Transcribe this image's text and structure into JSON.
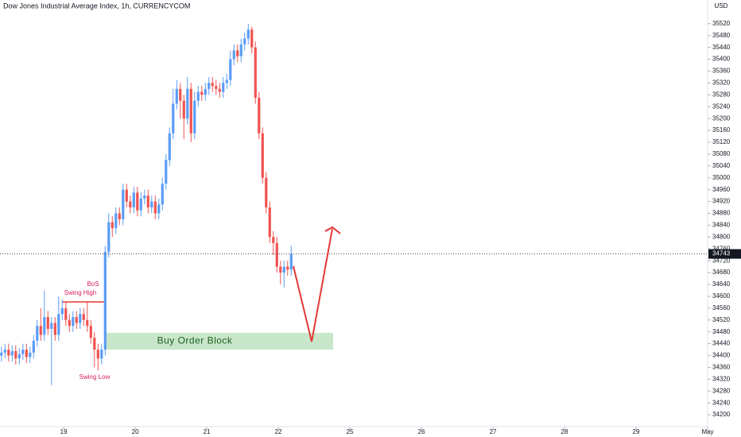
{
  "chart_data": {
    "type": "candlestick",
    "title": "Dow Jones Industrial Average Index, 1h, CURRENCYCOM",
    "currency": "USD",
    "x": [
      -0.87,
      -0.82,
      -0.77,
      -0.72,
      -0.67,
      -0.62,
      -0.57,
      -0.52,
      -0.47,
      -0.42,
      -0.37,
      -0.32,
      -0.27,
      -0.22,
      -0.17,
      -0.12,
      -0.07,
      -0.02,
      0.03,
      0.08,
      0.13,
      0.18,
      0.23,
      0.28,
      0.33,
      0.38,
      0.43,
      0.48,
      0.53,
      0.58,
      0.63,
      0.68,
      0.73,
      0.78,
      0.83,
      0.88,
      0.93,
      0.98,
      1.03,
      1.08,
      1.13,
      1.18,
      1.23,
      1.28,
      1.33,
      1.38,
      1.43,
      1.48,
      1.53,
      1.58,
      1.63,
      1.68,
      1.73,
      1.78,
      1.83,
      1.88,
      1.93,
      1.98,
      2.03,
      2.08,
      2.13,
      2.18,
      2.23,
      2.28,
      2.33,
      2.38,
      2.43,
      2.48,
      2.53,
      2.58,
      2.63,
      2.68,
      2.73,
      2.78,
      2.83,
      2.88,
      2.93,
      2.98,
      3.03,
      3.08,
      3.13,
      3.18
    ],
    "series": [
      {
        "up_color": "#5b9cf6",
        "down_color": "#ef5350",
        "open": [
          34400,
          34410,
          34420,
          34400,
          34415,
          34390,
          34405,
          34420,
          34395,
          34410,
          34450,
          34500,
          34470,
          34530,
          34490,
          34510,
          34470,
          34540,
          34560,
          34520,
          34500,
          34530,
          34510,
          34540,
          34520,
          34500,
          34460,
          34420,
          34390,
          34420,
          34750,
          34850,
          34830,
          34880,
          34860,
          34960,
          34920,
          34900,
          34950,
          34890,
          34930,
          34940,
          34900,
          34920,
          34880,
          34910,
          34980,
          35060,
          35150,
          35250,
          35300,
          35260,
          35200,
          35300,
          35150,
          35260,
          35290,
          35280,
          35300,
          35320,
          35310,
          35300,
          35290,
          35320,
          35330,
          35400,
          35430,
          35410,
          35450,
          35470,
          35500,
          35440,
          35270,
          35150,
          35000,
          34900,
          34800,
          34780,
          34700,
          34680,
          34700,
          34690
        ],
        "high": [
          34430,
          34440,
          34440,
          34435,
          34435,
          34425,
          34440,
          34440,
          34430,
          34470,
          34520,
          34560,
          34620,
          34550,
          34530,
          34530,
          34600,
          34590,
          34580,
          34540,
          34550,
          34550,
          34560,
          34560,
          34580,
          34520,
          34480,
          34440,
          34440,
          34770,
          34880,
          34870,
          34900,
          34900,
          34980,
          34980,
          34940,
          34970,
          34970,
          34950,
          34960,
          34960,
          34940,
          34940,
          34930,
          35000,
          35080,
          35170,
          35300,
          35330,
          35320,
          35280,
          35340,
          35320,
          35290,
          35310,
          35310,
          35320,
          35340,
          35340,
          35330,
          35320,
          35340,
          35350,
          35430,
          35450,
          35450,
          35470,
          35490,
          35520,
          35510,
          35460,
          35290,
          35170,
          35020,
          34920,
          34820,
          34800,
          34720,
          34720,
          34720,
          34770
        ],
        "low": [
          34380,
          34390,
          34380,
          34380,
          34370,
          34370,
          34385,
          34375,
          34375,
          34390,
          34430,
          34450,
          34450,
          34470,
          34300,
          34450,
          34450,
          34520,
          34500,
          34480,
          34480,
          34490,
          34490,
          34500,
          34480,
          34440,
          34360,
          34350,
          34370,
          34400,
          34730,
          34800,
          34810,
          34840,
          34840,
          34900,
          34880,
          34880,
          34870,
          34870,
          34910,
          34880,
          34880,
          34860,
          34860,
          34890,
          34960,
          35040,
          35130,
          35230,
          35200,
          35130,
          35180,
          35120,
          35130,
          35240,
          35260,
          35260,
          35280,
          35290,
          35280,
          35270,
          35270,
          35300,
          35310,
          35380,
          35390,
          35390,
          35430,
          35450,
          35420,
          35250,
          35130,
          34980,
          34880,
          34780,
          34740,
          34680,
          34640,
          34630,
          34670,
          34670
        ],
        "close": [
          34410,
          34420,
          34400,
          34415,
          34390,
          34405,
          34420,
          34395,
          34410,
          34450,
          34500,
          34470,
          34530,
          34490,
          34510,
          34470,
          34540,
          34560,
          34520,
          34500,
          34530,
          34510,
          34540,
          34520,
          34500,
          34460,
          34420,
          34390,
          34420,
          34750,
          34850,
          34830,
          34880,
          34860,
          34960,
          34920,
          34900,
          34950,
          34890,
          34930,
          34940,
          34900,
          34920,
          34880,
          34910,
          34980,
          35060,
          35150,
          35250,
          35300,
          35260,
          35200,
          35300,
          35150,
          35260,
          35290,
          35280,
          35300,
          35320,
          35310,
          35300,
          35290,
          35320,
          35330,
          35400,
          35430,
          35410,
          35450,
          35470,
          35500,
          35440,
          35270,
          35150,
          35000,
          34900,
          34800,
          34780,
          34700,
          34680,
          34700,
          34690,
          34743
        ]
      }
    ],
    "xlim": [
      -0.89,
      9.0
    ],
    "xticks": [
      {
        "value": 0,
        "label": "19"
      },
      {
        "value": 1,
        "label": "20"
      },
      {
        "value": 2,
        "label": "21"
      },
      {
        "value": 3,
        "label": "22"
      },
      {
        "value": 4,
        "label": "25"
      },
      {
        "value": 5,
        "label": "26"
      },
      {
        "value": 6,
        "label": "27"
      },
      {
        "value": 7,
        "label": "28"
      },
      {
        "value": 8,
        "label": "29"
      },
      {
        "value": 9,
        "label": "May"
      }
    ],
    "ylim": [
      34160,
      35600
    ],
    "yticks": [
      34200,
      34240,
      34280,
      34320,
      34360,
      34400,
      34440,
      34480,
      34520,
      34560,
      34600,
      34640,
      34680,
      34720,
      34760,
      34800,
      34840,
      34880,
      34920,
      34960,
      35000,
      35040,
      35080,
      35120,
      35160,
      35200,
      35240,
      35280,
      35320,
      35360,
      35400,
      35440,
      35480,
      35520
    ],
    "annotations": {
      "bos": "BoS",
      "swing_high": "Swing High",
      "swing_low": "Swing Low",
      "order_block": "Buy Order Block"
    }
  }
}
